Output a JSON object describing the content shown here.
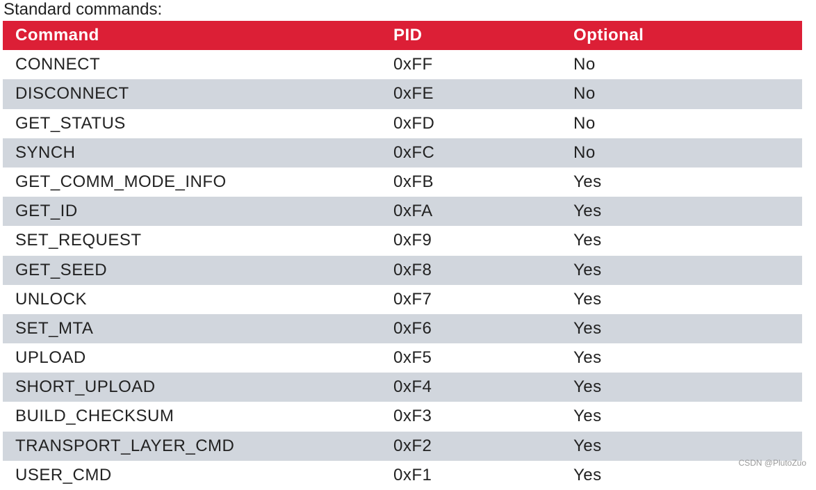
{
  "caption": "Standard commands:",
  "table": {
    "header": [
      "Command",
      "PID",
      "Optional"
    ],
    "rows": [
      [
        "CONNECT",
        "0xFF",
        "No"
      ],
      [
        "DISCONNECT",
        "0xFE",
        "No"
      ],
      [
        "GET_STATUS",
        "0xFD",
        "No"
      ],
      [
        "SYNCH",
        "0xFC",
        "No"
      ],
      [
        "GET_COMM_MODE_INFO",
        "0xFB",
        "Yes"
      ],
      [
        "GET_ID",
        "0xFA",
        "Yes"
      ],
      [
        "SET_REQUEST",
        "0xF9",
        "Yes"
      ],
      [
        "GET_SEED",
        "0xF8",
        "Yes"
      ],
      [
        "UNLOCK",
        "0xF7",
        "Yes"
      ],
      [
        "SET_MTA",
        "0xF6",
        "Yes"
      ],
      [
        "UPLOAD",
        "0xF5",
        "Yes"
      ],
      [
        "SHORT_UPLOAD",
        "0xF4",
        "Yes"
      ],
      [
        "BUILD_CHECKSUM",
        "0xF3",
        "Yes"
      ],
      [
        "TRANSPORT_LAYER_CMD",
        "0xF2",
        "Yes"
      ],
      [
        "USER_CMD",
        "0xF1",
        "Yes"
      ]
    ]
  },
  "watermark": "CSDN @PlutoZuo"
}
